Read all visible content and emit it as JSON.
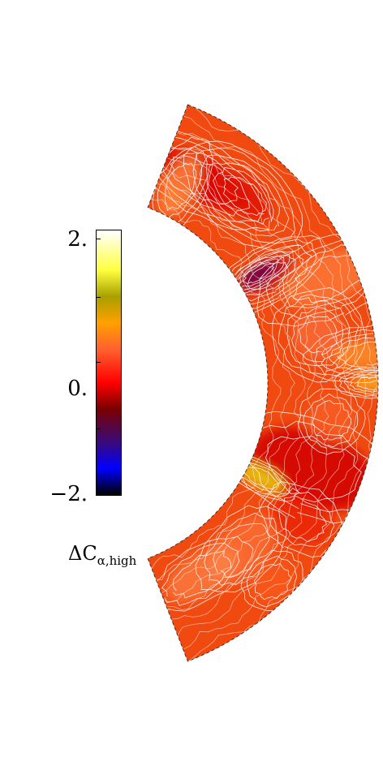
{
  "colorbar": {
    "max_label": "2.",
    "mid_label": "0.",
    "min_label": "−2.",
    "title_main": "ΔC",
    "title_sub": "α,high",
    "range": [
      -2,
      2
    ],
    "stops": [
      {
        "value": -2.0,
        "color": "#000000"
      },
      {
        "value": -1.6,
        "color": "#0000ff"
      },
      {
        "value": -1.2,
        "color": "#3a0a7a"
      },
      {
        "value": -0.7,
        "color": "#7a0000"
      },
      {
        "value": -0.3,
        "color": "#ff0000"
      },
      {
        "value": 0.2,
        "color": "#ff6030"
      },
      {
        "value": 0.6,
        "color": "#ffa000"
      },
      {
        "value": 1.0,
        "color": "#a8a000"
      },
      {
        "value": 1.4,
        "color": "#ffff40"
      },
      {
        "value": 2.0,
        "color": "#ffffff"
      }
    ]
  },
  "colors": {
    "background": "#ffffff",
    "field_base": "#f04a10",
    "contour": "#ffffff"
  }
}
